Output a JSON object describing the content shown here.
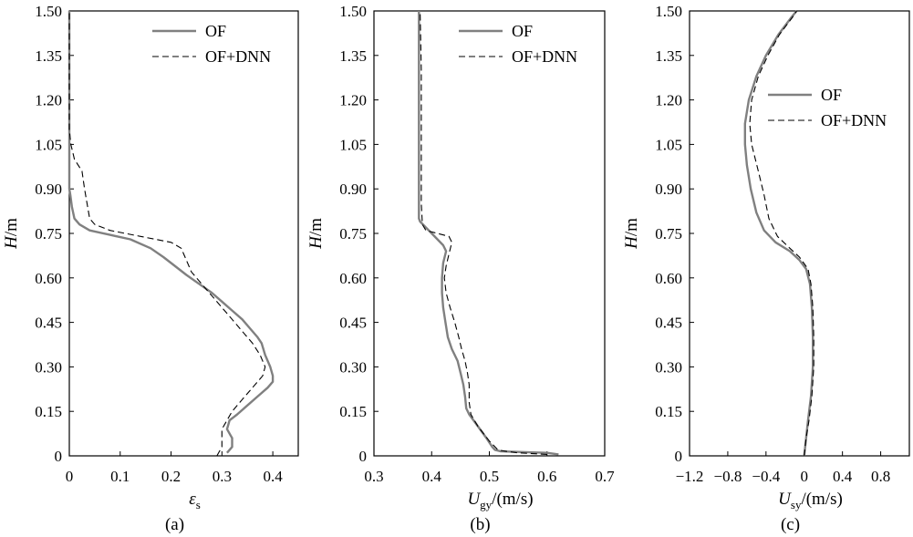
{
  "chart_data": [
    {
      "type": "line",
      "panel_label": "(a)",
      "xlabel": "ε",
      "xlabel_sub": "s",
      "ylabel": "H/m",
      "xlim": [
        0,
        0.45
      ],
      "ylim": [
        0,
        1.5
      ],
      "xticks": [
        0,
        0.1,
        0.2,
        0.3,
        0.4
      ],
      "xtick_labels": [
        "0",
        "0.1",
        "0.2",
        "0.3",
        "0.4"
      ],
      "yticks": [
        0,
        0.15,
        0.3,
        0.45,
        0.6,
        0.75,
        0.9,
        1.05,
        1.2,
        1.35,
        1.5
      ],
      "ytick_labels": [
        "0",
        "0.15",
        "0.30",
        "0.45",
        "0.60",
        "0.75",
        "0.90",
        "1.05",
        "1.20",
        "1.35",
        "1.50"
      ],
      "legend": {
        "position": "top-right"
      },
      "series": [
        {
          "name": "OF",
          "style": "solid",
          "color": "#808080",
          "points": [
            [
              0.31,
              0.01
            ],
            [
              0.32,
              0.03
            ],
            [
              0.32,
              0.06
            ],
            [
              0.31,
              0.09
            ],
            [
              0.315,
              0.12
            ],
            [
              0.33,
              0.14
            ],
            [
              0.35,
              0.17
            ],
            [
              0.37,
              0.2
            ],
            [
              0.39,
              0.23
            ],
            [
              0.4,
              0.25
            ],
            [
              0.4,
              0.27
            ],
            [
              0.395,
              0.3
            ],
            [
              0.385,
              0.34
            ],
            [
              0.378,
              0.38
            ],
            [
              0.37,
              0.4
            ],
            [
              0.355,
              0.43
            ],
            [
              0.34,
              0.46
            ],
            [
              0.32,
              0.49
            ],
            [
              0.3,
              0.52
            ],
            [
              0.28,
              0.55
            ],
            [
              0.255,
              0.58
            ],
            [
              0.23,
              0.61
            ],
            [
              0.2,
              0.65
            ],
            [
              0.185,
              0.67
            ],
            [
              0.16,
              0.7
            ],
            [
              0.12,
              0.73
            ],
            [
              0.08,
              0.745
            ],
            [
              0.04,
              0.76
            ],
            [
              0.02,
              0.78
            ],
            [
              0.01,
              0.8
            ],
            [
              0.005,
              0.84
            ],
            [
              0.002,
              0.88
            ],
            [
              0,
              0.9
            ],
            [
              0,
              1.2
            ],
            [
              0,
              1.5
            ]
          ]
        },
        {
          "name": "OF+DNN",
          "style": "dashed",
          "color": "#000000",
          "points": [
            [
              0.29,
              0.0
            ],
            [
              0.3,
              0.03
            ],
            [
              0.3,
              0.06
            ],
            [
              0.3,
              0.09
            ],
            [
              0.31,
              0.12
            ],
            [
              0.32,
              0.15
            ],
            [
              0.34,
              0.19
            ],
            [
              0.36,
              0.23
            ],
            [
              0.38,
              0.27
            ],
            [
              0.385,
              0.3
            ],
            [
              0.375,
              0.34
            ],
            [
              0.36,
              0.38
            ],
            [
              0.34,
              0.42
            ],
            [
              0.32,
              0.46
            ],
            [
              0.3,
              0.5
            ],
            [
              0.28,
              0.54
            ],
            [
              0.26,
              0.58
            ],
            [
              0.24,
              0.62
            ],
            [
              0.23,
              0.66
            ],
            [
              0.22,
              0.7
            ],
            [
              0.2,
              0.72
            ],
            [
              0.14,
              0.74
            ],
            [
              0.08,
              0.76
            ],
            [
              0.05,
              0.78
            ],
            [
              0.04,
              0.8
            ],
            [
              0.035,
              0.85
            ],
            [
              0.03,
              0.9
            ],
            [
              0.025,
              0.96
            ],
            [
              0.01,
              1.0
            ],
            [
              0.003,
              1.05
            ],
            [
              0,
              1.1
            ],
            [
              0,
              1.5
            ]
          ]
        }
      ]
    },
    {
      "type": "line",
      "panel_label": "(b)",
      "xlabel": "U",
      "xlabel_sub": "gy",
      "xlabel_unit": "/(m/s)",
      "ylabel": "H/m",
      "xlim": [
        0.3,
        0.7
      ],
      "ylim": [
        0,
        1.5
      ],
      "xticks": [
        0.3,
        0.4,
        0.5,
        0.6,
        0.7
      ],
      "xtick_labels": [
        "0.3",
        "0.4",
        "0.5",
        "0.6",
        "0.7"
      ],
      "yticks": [
        0,
        0.15,
        0.3,
        0.45,
        0.6,
        0.75,
        0.9,
        1.05,
        1.2,
        1.35,
        1.5
      ],
      "ytick_labels": [
        "0",
        "0.15",
        "0.30",
        "0.45",
        "0.60",
        "0.75",
        "0.90",
        "1.05",
        "1.20",
        "1.35",
        "1.50"
      ],
      "legend": {
        "position": "top-right"
      },
      "series": [
        {
          "name": "OF",
          "style": "solid",
          "color": "#808080",
          "points": [
            [
              0.62,
              0.005
            ],
            [
              0.6,
              0.01
            ],
            [
              0.52,
              0.015
            ],
            [
              0.51,
              0.02
            ],
            [
              0.505,
              0.03
            ],
            [
              0.495,
              0.06
            ],
            [
              0.48,
              0.1
            ],
            [
              0.465,
              0.14
            ],
            [
              0.46,
              0.16
            ],
            [
              0.458,
              0.2
            ],
            [
              0.455,
              0.24
            ],
            [
              0.45,
              0.28
            ],
            [
              0.445,
              0.32
            ],
            [
              0.435,
              0.36
            ],
            [
              0.428,
              0.4
            ],
            [
              0.424,
              0.45
            ],
            [
              0.42,
              0.5
            ],
            [
              0.418,
              0.55
            ],
            [
              0.418,
              0.6
            ],
            [
              0.42,
              0.65
            ],
            [
              0.425,
              0.69
            ],
            [
              0.42,
              0.71
            ],
            [
              0.41,
              0.73
            ],
            [
              0.4,
              0.75
            ],
            [
              0.39,
              0.77
            ],
            [
              0.38,
              0.79
            ],
            [
              0.378,
              0.8
            ],
            [
              0.378,
              0.9
            ],
            [
              0.378,
              1.2
            ],
            [
              0.378,
              1.5
            ]
          ]
        },
        {
          "name": "OF+DNN",
          "style": "dashed",
          "color": "#000000",
          "points": [
            [
              0.6,
              0.005
            ],
            [
              0.55,
              0.01
            ],
            [
              0.53,
              0.015
            ],
            [
              0.515,
              0.02
            ],
            [
              0.5,
              0.05
            ],
            [
              0.48,
              0.1
            ],
            [
              0.468,
              0.14
            ],
            [
              0.465,
              0.18
            ],
            [
              0.465,
              0.24
            ],
            [
              0.462,
              0.28
            ],
            [
              0.458,
              0.32
            ],
            [
              0.452,
              0.36
            ],
            [
              0.447,
              0.4
            ],
            [
              0.44,
              0.45
            ],
            [
              0.432,
              0.5
            ],
            [
              0.425,
              0.55
            ],
            [
              0.422,
              0.6
            ],
            [
              0.425,
              0.64
            ],
            [
              0.43,
              0.68
            ],
            [
              0.435,
              0.72
            ],
            [
              0.43,
              0.74
            ],
            [
              0.41,
              0.75
            ],
            [
              0.39,
              0.76
            ],
            [
              0.384,
              0.78
            ],
            [
              0.382,
              0.85
            ],
            [
              0.382,
              1.0
            ],
            [
              0.382,
              1.3
            ],
            [
              0.38,
              1.5
            ]
          ]
        }
      ]
    },
    {
      "type": "line",
      "panel_label": "(c)",
      "xlabel": "U",
      "xlabel_sub": "sy",
      "xlabel_unit": "/(m/s)",
      "ylabel": "H/m",
      "xlim": [
        -1.2,
        1.1
      ],
      "ylim": [
        0,
        1.5
      ],
      "xticks": [
        -1.2,
        -0.8,
        -0.4,
        0,
        0.4,
        0.8
      ],
      "xtick_labels": [
        "−1.2",
        "−0.8",
        "−0.4",
        "0",
        "0.4",
        "0.8"
      ],
      "yticks": [
        0,
        0.15,
        0.3,
        0.45,
        0.6,
        0.75,
        0.9,
        1.05,
        1.2,
        1.35,
        1.5
      ],
      "ytick_labels": [
        "0",
        "0.15",
        "0.30",
        "0.45",
        "0.60",
        "0.75",
        "0.90",
        "1.05",
        "1.20",
        "1.35",
        "1.50"
      ],
      "legend": {
        "position": "top-right"
      },
      "series": [
        {
          "name": "OF",
          "style": "solid",
          "color": "#808080",
          "points": [
            [
              0.0,
              0.0
            ],
            [
              0.02,
              0.06
            ],
            [
              0.04,
              0.12
            ],
            [
              0.07,
              0.2
            ],
            [
              0.09,
              0.3
            ],
            [
              0.09,
              0.4
            ],
            [
              0.08,
              0.5
            ],
            [
              0.06,
              0.58
            ],
            [
              0.02,
              0.63
            ],
            [
              -0.05,
              0.66
            ],
            [
              -0.15,
              0.69
            ],
            [
              -0.3,
              0.72
            ],
            [
              -0.42,
              0.76
            ],
            [
              -0.5,
              0.82
            ],
            [
              -0.56,
              0.9
            ],
            [
              -0.6,
              0.98
            ],
            [
              -0.62,
              1.05
            ],
            [
              -0.62,
              1.12
            ],
            [
              -0.58,
              1.2
            ],
            [
              -0.5,
              1.28
            ],
            [
              -0.4,
              1.35
            ],
            [
              -0.27,
              1.42
            ],
            [
              -0.13,
              1.48
            ],
            [
              -0.08,
              1.5
            ]
          ]
        },
        {
          "name": "OF+DNN",
          "style": "dashed",
          "color": "#000000",
          "points": [
            [
              0.0,
              0.0
            ],
            [
              0.02,
              0.06
            ],
            [
              0.05,
              0.12
            ],
            [
              0.08,
              0.2
            ],
            [
              0.1,
              0.3
            ],
            [
              0.1,
              0.4
            ],
            [
              0.09,
              0.5
            ],
            [
              0.07,
              0.58
            ],
            [
              0.04,
              0.63
            ],
            [
              -0.05,
              0.67
            ],
            [
              -0.15,
              0.7
            ],
            [
              -0.28,
              0.74
            ],
            [
              -0.37,
              0.8
            ],
            [
              -0.42,
              0.88
            ],
            [
              -0.48,
              0.96
            ],
            [
              -0.55,
              1.05
            ],
            [
              -0.57,
              1.12
            ],
            [
              -0.55,
              1.2
            ],
            [
              -0.48,
              1.28
            ],
            [
              -0.38,
              1.35
            ],
            [
              -0.26,
              1.42
            ],
            [
              -0.12,
              1.48
            ],
            [
              -0.08,
              1.5
            ]
          ]
        }
      ]
    }
  ]
}
